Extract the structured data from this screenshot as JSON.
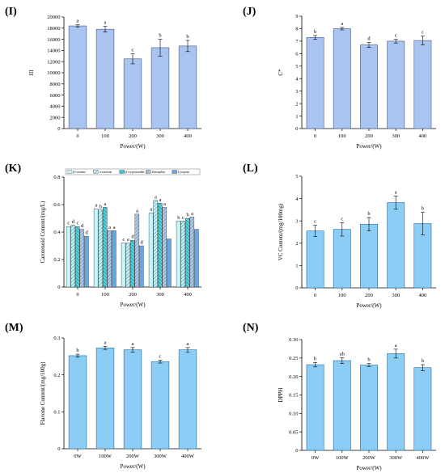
{
  "colors": {
    "bar_fill": "#a9c4f0",
    "bar_stroke": "#4a5a80",
    "bar_fill_bright": "#8ccdf5",
    "bar_stroke_bright": "#2c6a99"
  },
  "chart_data": [
    {
      "panel": "(I)",
      "type": "bar",
      "categories": [
        "0",
        "100",
        "200",
        "300",
        "400"
      ],
      "values": [
        18400,
        17800,
        12500,
        14500,
        14800
      ],
      "errors": [
        200,
        500,
        900,
        1500,
        1000
      ],
      "letters": [
        "a",
        "a",
        "c",
        "b",
        "b"
      ],
      "ylabel": "ΙΙΙ",
      "xlabel": "Power/(W)",
      "ylim": [
        0,
        20000
      ],
      "yticks": [
        "0",
        "2000",
        "4000",
        "6000",
        "8000",
        "10000",
        "12000",
        "14000",
        "16000",
        "18000",
        "20000"
      ],
      "color_style": "pale"
    },
    {
      "panel": "(J)",
      "type": "bar",
      "categories": [
        "0",
        "100",
        "200",
        "300",
        "400"
      ],
      "values": [
        7.3,
        8.0,
        6.7,
        7.0,
        7.05
      ],
      "errors": [
        0.15,
        0.1,
        0.2,
        0.15,
        0.35
      ],
      "letters": [
        "b",
        "a",
        "d",
        "c",
        "c"
      ],
      "ylabel": "C*",
      "xlabel": "Power/(W)",
      "ylim": [
        0,
        9
      ],
      "yticks": [
        "0",
        "1",
        "2",
        "3",
        "4",
        "5",
        "6",
        "7",
        "8",
        "9"
      ],
      "color_style": "pale"
    },
    {
      "panel": "(K)",
      "type": "bar",
      "categories": [
        "0",
        "100",
        "200",
        "300",
        "400"
      ],
      "series": [
        {
          "name": "β-carotene",
          "values": [
            0.44,
            0.57,
            0.32,
            0.54,
            0.48
          ],
          "letters": [
            "c",
            "a",
            "c",
            "a",
            "b"
          ]
        },
        {
          "name": "α-carotene",
          "values": [
            0.45,
            0.56,
            0.32,
            0.63,
            0.48
          ],
          "letters": [
            "d",
            "b",
            "e",
            "a",
            "c"
          ]
        },
        {
          "name": "β-cryptoxanthin",
          "values": [
            0.44,
            0.58,
            0.34,
            0.61,
            0.5
          ],
          "letters": [
            "c",
            "a",
            "d",
            "a",
            "b"
          ]
        },
        {
          "name": "Zeaxanthin",
          "values": [
            0.42,
            0.41,
            0.53,
            0.58,
            0.51
          ],
          "letters": [
            "d",
            "a",
            "a",
            "a",
            "a"
          ]
        },
        {
          "name": "Lycopene",
          "values": [
            0.37,
            0.41,
            0.3,
            0.35,
            0.42
          ],
          "letters": [
            "d",
            "a",
            "d",
            "",
            ""
          ]
        }
      ],
      "ylabel": "Carotenoid Content/(mg/L)",
      "xlabel": "Power/(W)",
      "ylim": [
        0,
        0.8
      ],
      "yticks": [
        "0",
        "0.2",
        "0.4",
        "0.6",
        "0.8"
      ],
      "legend": "top"
    },
    {
      "panel": "(L)",
      "type": "bar",
      "categories": [
        "0",
        "100",
        "200",
        "300",
        "400"
      ],
      "values": [
        2.55,
        2.62,
        2.85,
        3.82,
        2.88
      ],
      "errors": [
        0.25,
        0.3,
        0.3,
        0.3,
        0.5
      ],
      "letters": [
        "c",
        "c",
        "b",
        "a",
        "b"
      ],
      "ylabel": "VC Content/(mg/100mg)",
      "xlabel": "Power/(W)",
      "ylim": [
        0,
        5
      ],
      "yticks": [
        "0",
        "1",
        "2",
        "3",
        "4",
        "5"
      ],
      "color_style": "bright"
    },
    {
      "panel": "(M)",
      "type": "bar",
      "categories": [
        "0W",
        "100W",
        "200W",
        "300W",
        "400W"
      ],
      "values": [
        0.252,
        0.273,
        0.268,
        0.236,
        0.268
      ],
      "errors": [
        0.004,
        0.004,
        0.006,
        0.004,
        0.006
      ],
      "letters": [
        "b",
        "a",
        "a",
        "c",
        "a"
      ],
      "ylabel": "Flavone Content/(mg/100g)",
      "xlabel": "Power/(W)",
      "ylim": [
        0,
        0.3
      ],
      "yticks": [
        "0",
        "0.1",
        "0.2",
        "0.3"
      ],
      "color_style": "bright"
    },
    {
      "panel": "(N)",
      "type": "bar",
      "categories": [
        "0W",
        "100W",
        "200W",
        "300W",
        "400W"
      ],
      "values": [
        0.232,
        0.243,
        0.231,
        0.262,
        0.224
      ],
      "errors": [
        0.006,
        0.008,
        0.004,
        0.012,
        0.008
      ],
      "letters": [
        "b",
        "ab",
        "b",
        "a",
        "b"
      ],
      "ylabel": "DPPH",
      "xlabel": "Power/(W)",
      "ylim": [
        0,
        0.3
      ],
      "yticks": [
        "0",
        "0.05",
        "0.10",
        "0.15",
        "0.20",
        "0.25",
        "0.30"
      ],
      "color_style": "bright"
    }
  ]
}
